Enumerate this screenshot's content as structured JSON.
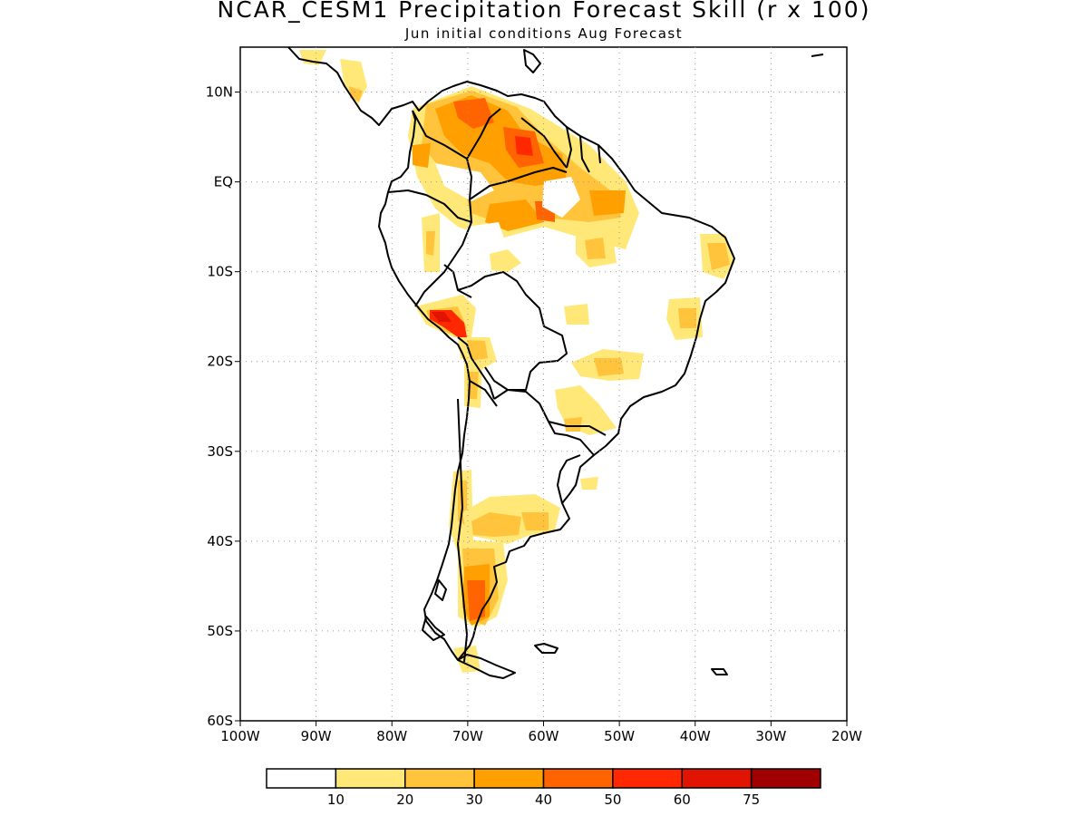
{
  "title": "NCAR_CESM1 Precipitation Forecast Skill (r x 100)",
  "subtitle": "Jun initial conditions  Aug Forecast",
  "map": {
    "lon_range": [
      -100,
      -20
    ],
    "lat_range": [
      -60,
      15
    ],
    "lon_ticks": [
      "100W",
      "90W",
      "80W",
      "70W",
      "60W",
      "50W",
      "40W",
      "30W",
      "20W"
    ],
    "lat_ticks": [
      "10N",
      "EQ",
      "10S",
      "20S",
      "30S",
      "40S",
      "50S",
      "60S"
    ],
    "grid": "dotted",
    "coastline_color": "#000000"
  },
  "legend": {
    "labels": [
      "10",
      "20",
      "30",
      "40",
      "50",
      "60",
      "75"
    ],
    "colors": [
      "#ffffff",
      "#ffe878",
      "#ffc43c",
      "#ffa000",
      "#ff6400",
      "#ff2800",
      "#e01400",
      "#a00000"
    ]
  }
}
